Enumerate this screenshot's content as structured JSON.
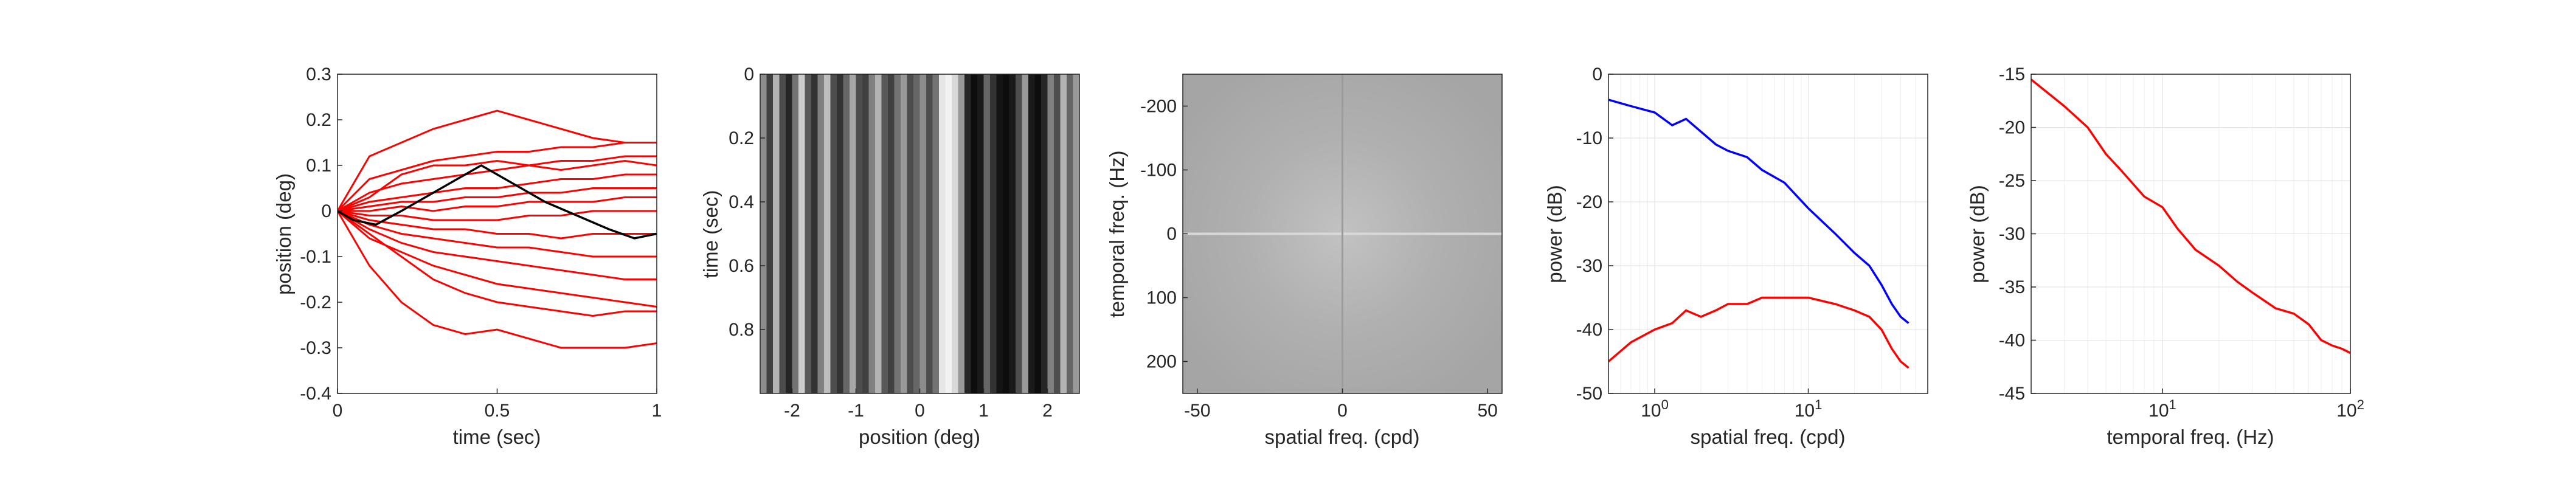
{
  "chart_data": [
    {
      "type": "line",
      "title": "",
      "xlabel": "time (sec)",
      "ylabel": "position (deg)",
      "xlim": [
        0,
        1
      ],
      "ylim": [
        -0.4,
        0.3
      ],
      "xticks": [
        "0",
        "0.5",
        "1"
      ],
      "yticks": [
        "-0.4",
        "-0.3",
        "-0.2",
        "-0.1",
        "0",
        "0.1",
        "0.2",
        "0.3"
      ],
      "grid": false,
      "series_color": "#ff0000",
      "highlight_color": "#000000",
      "series": [
        {
          "x": [
            0,
            0.1,
            0.2,
            0.3,
            0.4,
            0.5,
            0.6,
            0.7,
            0.8,
            0.9,
            1.0
          ],
          "values": [
            0,
            0.12,
            0.15,
            0.18,
            0.2,
            0.22,
            0.2,
            0.18,
            0.16,
            0.15,
            0.15
          ]
        },
        {
          "x": [
            0,
            0.1,
            0.2,
            0.3,
            0.4,
            0.5,
            0.6,
            0.7,
            0.8,
            0.9,
            1.0
          ],
          "values": [
            0,
            0.07,
            0.09,
            0.11,
            0.12,
            0.13,
            0.13,
            0.14,
            0.14,
            0.15,
            0.15
          ]
        },
        {
          "x": [
            0,
            0.1,
            0.2,
            0.3,
            0.4,
            0.5,
            0.6,
            0.7,
            0.8,
            0.9,
            1.0
          ],
          "values": [
            0,
            0.04,
            0.06,
            0.07,
            0.08,
            0.09,
            0.1,
            0.11,
            0.11,
            0.12,
            0.12
          ]
        },
        {
          "x": [
            0,
            0.1,
            0.2,
            0.3,
            0.4,
            0.5,
            0.6,
            0.7,
            0.8,
            0.9,
            1.0
          ],
          "values": [
            0,
            0.02,
            0.03,
            0.04,
            0.05,
            0.05,
            0.06,
            0.07,
            0.07,
            0.08,
            0.08
          ]
        },
        {
          "x": [
            0,
            0.1,
            0.2,
            0.3,
            0.4,
            0.5,
            0.6,
            0.7,
            0.8,
            0.9,
            1.0
          ],
          "values": [
            0,
            0.01,
            0.02,
            0.02,
            0.03,
            0.03,
            0.04,
            0.04,
            0.05,
            0.05,
            0.05
          ]
        },
        {
          "x": [
            0,
            0.1,
            0.2,
            0.3,
            0.4,
            0.5,
            0.6,
            0.7,
            0.8,
            0.9,
            1.0
          ],
          "values": [
            0,
            0.0,
            0.01,
            0.0,
            0.01,
            0.01,
            0.02,
            0.02,
            0.02,
            0.03,
            0.03
          ]
        },
        {
          "x": [
            0,
            0.1,
            0.2,
            0.3,
            0.4,
            0.5,
            0.6,
            0.7,
            0.8,
            0.9,
            1.0
          ],
          "values": [
            0,
            -0.01,
            -0.01,
            -0.02,
            -0.02,
            -0.02,
            -0.01,
            -0.01,
            0.0,
            0.0,
            0.0
          ]
        },
        {
          "x": [
            0,
            0.1,
            0.2,
            0.3,
            0.4,
            0.5,
            0.6,
            0.7,
            0.8,
            0.9,
            1.0
          ],
          "values": [
            0,
            -0.02,
            -0.03,
            -0.04,
            -0.04,
            -0.05,
            -0.05,
            -0.06,
            -0.05,
            -0.05,
            -0.05
          ]
        },
        {
          "x": [
            0,
            0.1,
            0.2,
            0.3,
            0.4,
            0.5,
            0.6,
            0.7,
            0.8,
            0.9,
            1.0
          ],
          "values": [
            0,
            -0.03,
            -0.05,
            -0.06,
            -0.07,
            -0.08,
            -0.08,
            -0.09,
            -0.1,
            -0.1,
            -0.1
          ]
        },
        {
          "x": [
            0,
            0.1,
            0.2,
            0.3,
            0.4,
            0.5,
            0.6,
            0.7,
            0.8,
            0.9,
            1.0
          ],
          "values": [
            0,
            -0.04,
            -0.07,
            -0.09,
            -0.1,
            -0.11,
            -0.12,
            -0.13,
            -0.14,
            -0.15,
            -0.15
          ]
        },
        {
          "x": [
            0,
            0.1,
            0.2,
            0.3,
            0.4,
            0.5,
            0.6,
            0.7,
            0.8,
            0.9,
            1.0
          ],
          "values": [
            0,
            -0.06,
            -0.09,
            -0.12,
            -0.14,
            -0.16,
            -0.17,
            -0.18,
            -0.19,
            -0.2,
            -0.21
          ]
        },
        {
          "x": [
            0,
            0.1,
            0.2,
            0.3,
            0.4,
            0.5,
            0.6,
            0.7,
            0.8,
            0.9,
            1.0
          ],
          "values": [
            0,
            -0.12,
            -0.2,
            -0.25,
            -0.27,
            -0.26,
            -0.28,
            -0.3,
            -0.3,
            -0.3,
            -0.29
          ]
        },
        {
          "x": [
            0,
            0.1,
            0.2,
            0.3,
            0.4,
            0.5,
            0.6,
            0.7,
            0.8,
            0.9,
            1.0
          ],
          "values": [
            0,
            -0.05,
            -0.1,
            -0.15,
            -0.18,
            -0.2,
            -0.21,
            -0.22,
            -0.23,
            -0.22,
            -0.22
          ]
        },
        {
          "x": [
            0,
            0.1,
            0.2,
            0.3,
            0.4,
            0.5,
            0.6,
            0.7,
            0.8,
            0.9,
            1.0
          ],
          "values": [
            0,
            0.03,
            0.08,
            0.1,
            0.1,
            0.11,
            0.1,
            0.09,
            0.1,
            0.11,
            0.1
          ]
        }
      ],
      "highlight": {
        "x": [
          0,
          0.05,
          0.12,
          0.2,
          0.3,
          0.4,
          0.45,
          0.55,
          0.65,
          0.75,
          0.85,
          0.93,
          1.0
        ],
        "values": [
          0,
          -0.02,
          -0.03,
          0.0,
          0.04,
          0.08,
          0.1,
          0.06,
          0.02,
          -0.01,
          -0.04,
          -0.06,
          -0.05
        ]
      }
    },
    {
      "type": "heatmap",
      "title": "",
      "xlabel": "position (deg)",
      "ylabel": "time (sec)",
      "xlim": [
        -2.5,
        2.5
      ],
      "ylim": [
        0,
        1
      ],
      "y_reversed": true,
      "xticks": [
        "-2",
        "-1",
        "0",
        "1",
        "2"
      ],
      "yticks": [
        "0",
        "0.2",
        "0.4",
        "0.6",
        "0.8"
      ],
      "colormap": "gray",
      "stripes": {
        "x": [
          -2.45,
          -2.35,
          -2.25,
          -2.15,
          -2.05,
          -1.95,
          -1.85,
          -1.75,
          -1.65,
          -1.55,
          -1.45,
          -1.35,
          -1.25,
          -1.15,
          -1.05,
          -0.95,
          -0.85,
          -0.75,
          -0.65,
          -0.55,
          -0.45,
          -0.35,
          -0.25,
          -0.15,
          -0.05,
          0.05,
          0.15,
          0.25,
          0.35,
          0.45,
          0.55,
          0.65,
          0.75,
          0.85,
          0.95,
          1.05,
          1.15,
          1.25,
          1.35,
          1.45,
          1.55,
          1.65,
          1.75,
          1.85,
          1.95,
          2.05,
          2.15,
          2.25,
          2.35,
          2.45
        ],
        "intensity": [
          0.55,
          0.25,
          0.7,
          0.3,
          0.15,
          0.45,
          0.8,
          0.35,
          0.2,
          0.5,
          0.75,
          0.3,
          0.2,
          0.4,
          0.65,
          0.3,
          0.25,
          0.5,
          0.7,
          0.35,
          0.25,
          0.45,
          0.6,
          0.3,
          0.4,
          0.55,
          0.3,
          0.45,
          0.9,
          0.95,
          0.85,
          0.6,
          0.15,
          0.05,
          0.1,
          0.4,
          0.2,
          0.08,
          0.05,
          0.1,
          0.3,
          0.6,
          0.1,
          0.05,
          0.15,
          0.5,
          0.3,
          0.7,
          0.4,
          0.6
        ]
      }
    },
    {
      "type": "heatmap",
      "title": "",
      "xlabel": "spatial freq. (cpd)",
      "ylabel": "temporal freq. (Hz)",
      "xlim": [
        -55,
        55
      ],
      "ylim": [
        -250,
        250
      ],
      "y_reversed": true,
      "xticks": [
        "-50",
        "0",
        "50"
      ],
      "yticks": [
        "-200",
        "-100",
        "0",
        "100",
        "200"
      ],
      "colormap": "gray"
    },
    {
      "type": "line",
      "title": "",
      "xlabel": "spatial freq. (cpd)",
      "ylabel": "power (dB)",
      "xscale": "log",
      "xlim": [
        0.5,
        60
      ],
      "ylim": [
        -50,
        0
      ],
      "xticks": [
        "10^0",
        "10^1"
      ],
      "yticks": [
        "0",
        "-10",
        "-20",
        "-30",
        "-40",
        "-50"
      ],
      "grid": true,
      "series": [
        {
          "color": "#0000ff",
          "x": [
            0.5,
            0.7,
            1.0,
            1.3,
            1.6,
            2.0,
            2.5,
            3.0,
            4.0,
            5.0,
            7.0,
            10.0,
            15.0,
            20.0,
            25.0,
            30.0,
            35.0,
            40.0,
            45.0
          ],
          "values": [
            -4,
            -5,
            -6,
            -8,
            -7,
            -9,
            -11,
            -12,
            -13,
            -15,
            -17,
            -21,
            -25,
            -28,
            -30,
            -33,
            -36,
            -38,
            -39
          ]
        },
        {
          "color": "#ff0000",
          "x": [
            0.5,
            0.7,
            1.0,
            1.3,
            1.6,
            2.0,
            2.5,
            3.0,
            4.0,
            5.0,
            7.0,
            10.0,
            15.0,
            20.0,
            25.0,
            30.0,
            35.0,
            40.0,
            45.0
          ],
          "values": [
            -45,
            -42,
            -40,
            -39,
            -37,
            -38,
            -37,
            -36,
            -36,
            -35,
            -35,
            -35,
            -36,
            -37,
            -38,
            -40,
            -43,
            -45,
            -46
          ]
        }
      ]
    },
    {
      "type": "line",
      "title": "",
      "xlabel": "temporal freq. (Hz)",
      "ylabel": "power (dB)",
      "xscale": "log",
      "xlim": [
        2,
        100
      ],
      "ylim": [
        -45,
        -15
      ],
      "xticks": [
        "10^1",
        "10^2"
      ],
      "yticks": [
        "-15",
        "-20",
        "-25",
        "-30",
        "-35",
        "-40",
        "-45"
      ],
      "grid": true,
      "series": [
        {
          "color": "#ff0000",
          "x": [
            2,
            3,
            4,
            5,
            6,
            8,
            10,
            12,
            15,
            20,
            25,
            30,
            40,
            50,
            60,
            70,
            80,
            90,
            100
          ],
          "values": [
            -15.5,
            -18,
            -20,
            -22.5,
            -24,
            -26.5,
            -27.5,
            -29.5,
            -31.5,
            -33,
            -34.5,
            -35.5,
            -37,
            -37.5,
            -38.5,
            -40,
            -40.5,
            -40.8,
            -41.2
          ]
        }
      ]
    }
  ]
}
